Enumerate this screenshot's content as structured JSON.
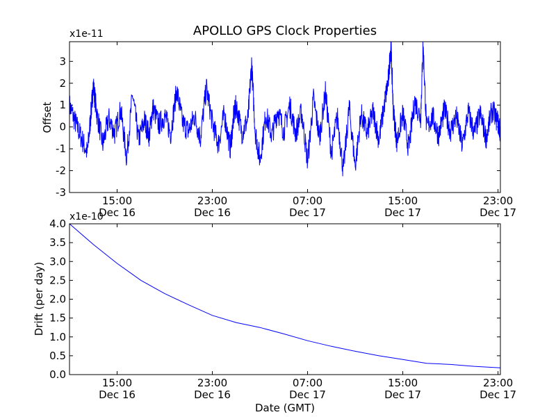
{
  "chart_data": [
    {
      "type": "line",
      "title": "APOLLO GPS Clock Properties",
      "ylabel": "Offset",
      "xlabel": "",
      "y_multiplier": "x1e-11",
      "ylim": [
        -3,
        3.9
      ],
      "yticks": [
        -3,
        -2,
        -1,
        0,
        1,
        2,
        3
      ],
      "ytick_labels": [
        "-3",
        "-2",
        "-1",
        "0",
        "1",
        "2",
        "3"
      ],
      "x_unit": "hours since Dec 16 11:00 GMT",
      "xlim": [
        0,
        36.2
      ],
      "xticks": [
        4,
        12,
        20,
        28,
        36
      ],
      "xtick_labels": [
        {
          "time": "15:00",
          "date": "Dec 16"
        },
        {
          "time": "23:00",
          "date": "Dec 16"
        },
        {
          "time": "07:00",
          "date": "Dec 17"
        },
        {
          "time": "15:00",
          "date": "Dec 17"
        },
        {
          "time": "23:00",
          "date": "Dec 17"
        }
      ],
      "color": "#0000ff",
      "series": [
        {
          "name": "Offset",
          "x": [
            0,
            0.5,
            1,
            1.5,
            1.8,
            2,
            2.3,
            2.8,
            3.3,
            3.8,
            4.3,
            4.8,
            5.3,
            5.8,
            6.3,
            6.7,
            7,
            7.5,
            8,
            8.5,
            9,
            9.5,
            10,
            10.5,
            11,
            11.5,
            12,
            12.5,
            13,
            13.5,
            13.8,
            14,
            14.5,
            15,
            15.3,
            15.6,
            16,
            16.5,
            17,
            17.5,
            18,
            18.5,
            19,
            19.5,
            20,
            20.5,
            21,
            21.5,
            22,
            22.5,
            23,
            23.5,
            24,
            24.5,
            25,
            25.5,
            26,
            26.5,
            26.8,
            27,
            27.2,
            27.5,
            28,
            28.5,
            29,
            29.5,
            29.7,
            30,
            30.5,
            31,
            31.5,
            32,
            32.5,
            33,
            33.5,
            34,
            34.5,
            35,
            35.5,
            36,
            36.2
          ],
          "values": [
            1.0,
            0.2,
            -0.5,
            -1.2,
            0.6,
            1.9,
            0.6,
            -0.8,
            0.4,
            -0.3,
            0.8,
            -1.4,
            1.5,
            -0.6,
            0.3,
            -0.4,
            0.9,
            0.1,
            0.5,
            -0.3,
            1.7,
            0.2,
            -0.2,
            0.5,
            -0.5,
            1.8,
            0.2,
            -0.8,
            0.6,
            -1.0,
            0.5,
            1.0,
            -0.3,
            0.4,
            2.9,
            -0.2,
            -1.5,
            0.6,
            -0.4,
            0.8,
            -0.2,
            1.0,
            -0.3,
            0.7,
            -1.6,
            1.3,
            -0.5,
            1.6,
            -1.2,
            0.5,
            -2.0,
            0.9,
            -1.8,
            0.6,
            -0.3,
            0.7,
            -0.6,
            1.2,
            2.2,
            3.8,
            0.8,
            -0.7,
            0.6,
            -1.0,
            1.2,
            0.4,
            3.8,
            -0.1,
            0.5,
            -0.4,
            0.8,
            -0.2,
            0.5,
            -0.9,
            0.7,
            -0.3,
            0.6,
            -0.5,
            0.8,
            0.2,
            -0.3
          ]
        }
      ]
    },
    {
      "type": "line",
      "title": "",
      "ylabel": "Drift (per day)",
      "xlabel": "Date (GMT)",
      "y_multiplier": "x1e-10",
      "ylim": [
        0,
        4.0
      ],
      "yticks": [
        0,
        0.5,
        1.0,
        1.5,
        2.0,
        2.5,
        3.0,
        3.5,
        4.0
      ],
      "ytick_labels": [
        "0.0",
        "0.5",
        "1.0",
        "1.5",
        "2.0",
        "2.5",
        "3.0",
        "3.5",
        "4.0"
      ],
      "x_unit": "hours since Dec 16 11:00 GMT",
      "xlim": [
        0,
        36.2
      ],
      "xticks": [
        4,
        12,
        20,
        28,
        36
      ],
      "xtick_labels": [
        {
          "time": "15:00",
          "date": "Dec 16"
        },
        {
          "time": "23:00",
          "date": "Dec 16"
        },
        {
          "time": "07:00",
          "date": "Dec 17"
        },
        {
          "time": "15:00",
          "date": "Dec 17"
        },
        {
          "time": "23:00",
          "date": "Dec 17"
        }
      ],
      "color": "#0000ff",
      "series": [
        {
          "name": "Drift",
          "x": [
            0,
            2,
            4,
            6,
            8,
            10,
            12,
            14,
            16,
            18,
            20,
            22,
            24,
            26,
            28,
            30,
            32,
            34,
            36.2
          ],
          "values": [
            4.0,
            3.45,
            2.95,
            2.5,
            2.15,
            1.85,
            1.57,
            1.38,
            1.25,
            1.08,
            0.9,
            0.75,
            0.62,
            0.5,
            0.4,
            0.3,
            0.27,
            0.22,
            0.18
          ]
        }
      ]
    }
  ]
}
